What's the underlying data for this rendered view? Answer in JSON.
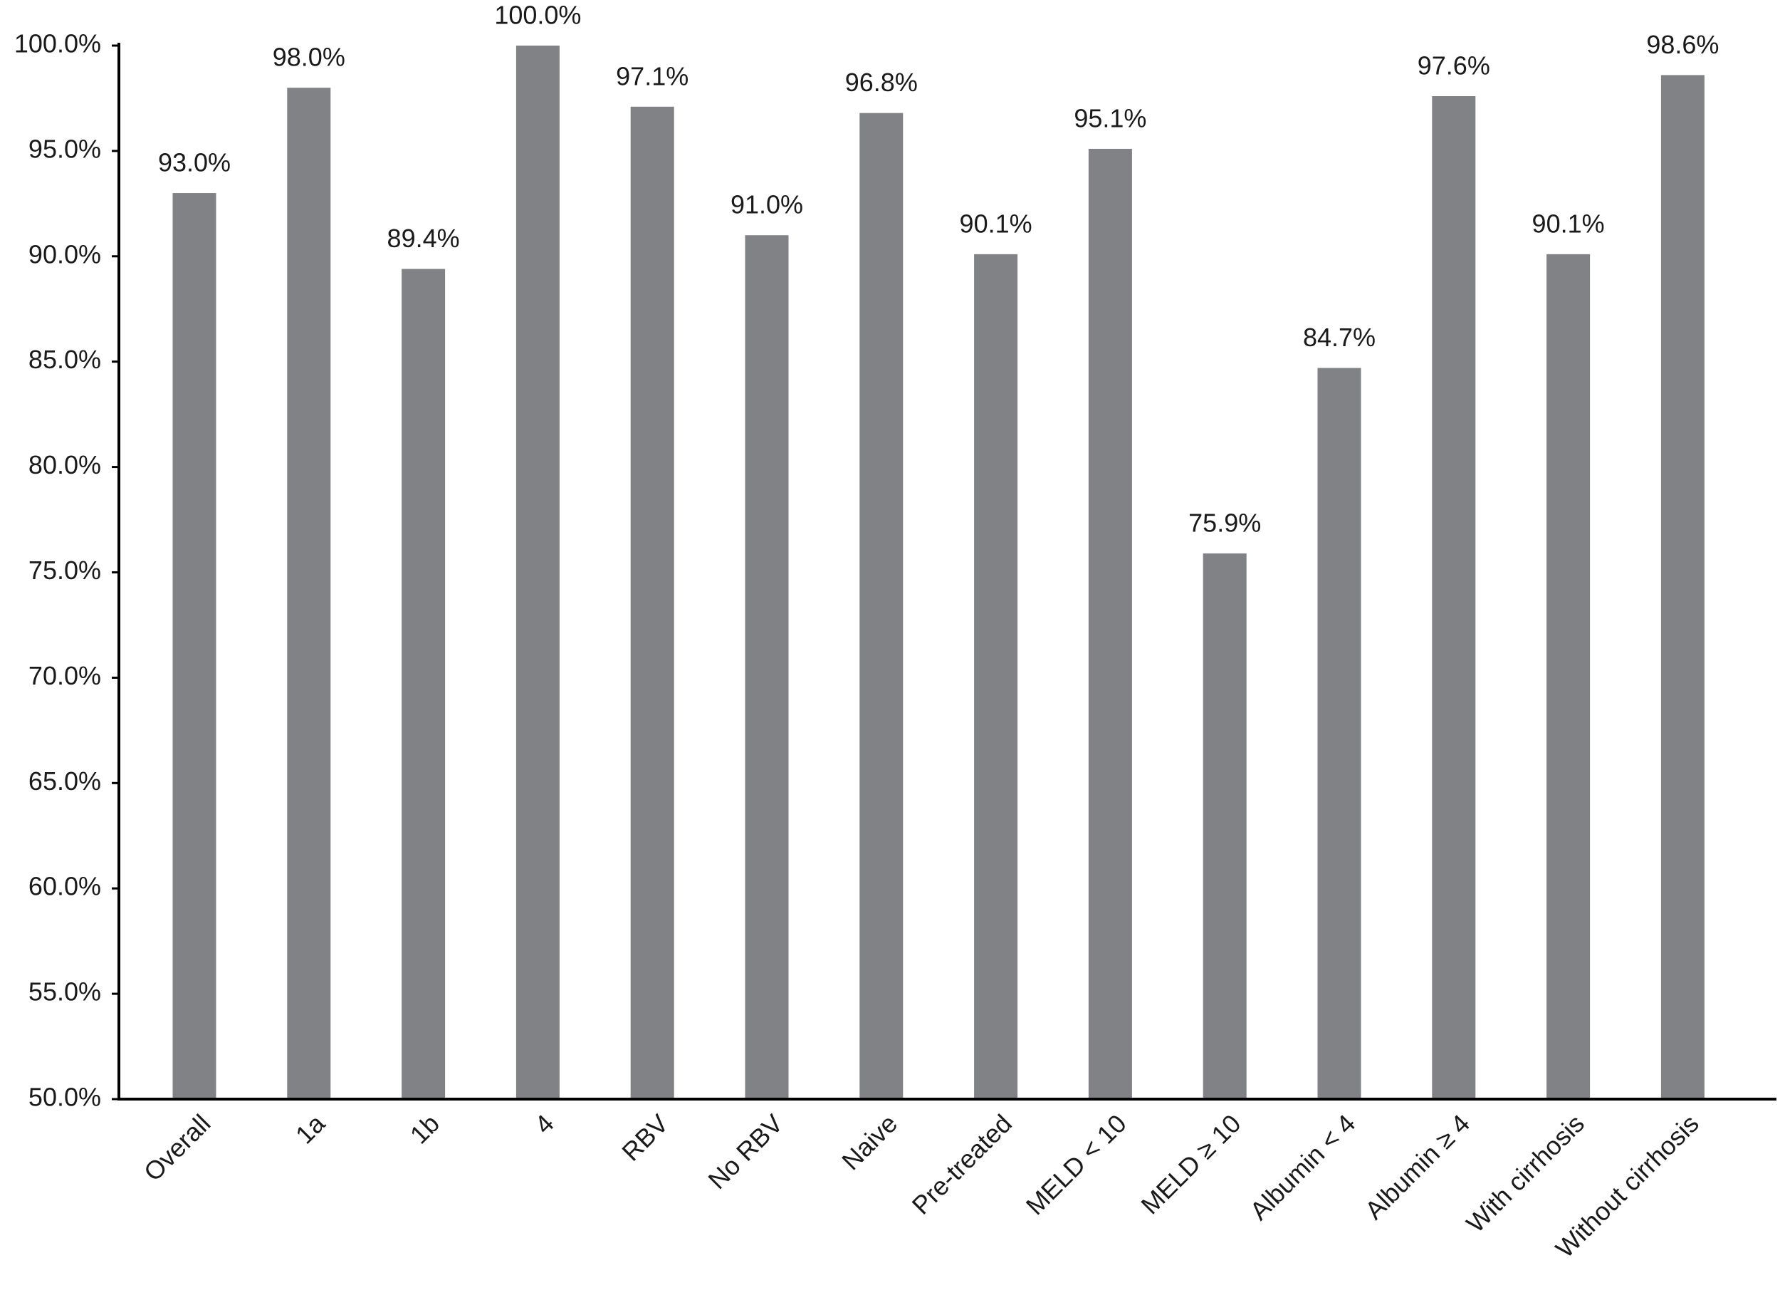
{
  "chart_data": {
    "type": "bar",
    "categories": [
      "Overall",
      "1a",
      "1b",
      "4",
      "RBV",
      "No RBV",
      "Naive",
      "Pre-treated",
      "MELD < 10",
      "MELD ≥ 10",
      "Albumin < 4",
      "Albumin ≥ 4",
      "With cirrhosis",
      "Without cirrhosis"
    ],
    "values": [
      93.0,
      98.0,
      89.4,
      100.0,
      97.1,
      91.0,
      96.8,
      90.1,
      95.1,
      75.9,
      84.7,
      97.6,
      90.1,
      98.6
    ],
    "value_labels": [
      "93.0%",
      "98.0%",
      "89.4%",
      "100.0%",
      "97.1%",
      "91.0%",
      "96.8%",
      "90.1%",
      "95.1%",
      "75.9%",
      "84.7%",
      "97.6%",
      "90.1%",
      "98.6%"
    ],
    "color": "#818285",
    "ylim": [
      50,
      100
    ],
    "yticks": [
      {
        "value": 50,
        "label": "50.0%"
      },
      {
        "value": 55,
        "label": "55.0%"
      },
      {
        "value": 60,
        "label": "60.0%"
      },
      {
        "value": 65,
        "label": "65.0%"
      },
      {
        "value": 70,
        "label": "70.0%"
      },
      {
        "value": 75,
        "label": "75.0%"
      },
      {
        "value": 80,
        "label": "80.0%"
      },
      {
        "value": 85,
        "label": "85.0%"
      },
      {
        "value": 90,
        "label": "90.0%"
      },
      {
        "value": 95,
        "label": "95.0%"
      },
      {
        "value": 100,
        "label": "100.0%"
      }
    ],
    "grid": false
  }
}
